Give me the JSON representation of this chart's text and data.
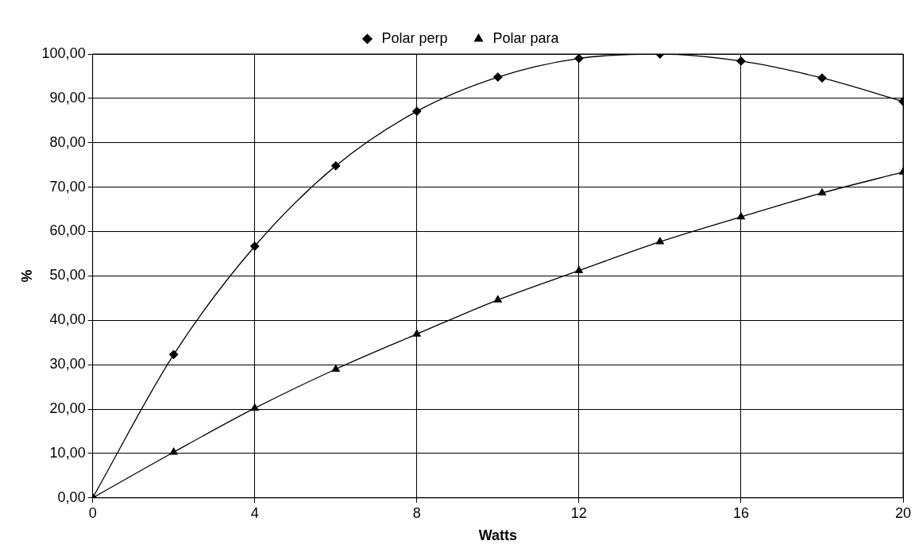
{
  "chart_data": {
    "type": "line",
    "xlabel": "Watts",
    "ylabel": "%",
    "x": [
      0,
      2,
      4,
      6,
      8,
      10,
      12,
      14,
      16,
      18,
      20
    ],
    "series": [
      {
        "name": "Polar perp",
        "color": "#000000",
        "marker": "diamond",
        "values": [
          0,
          32.3,
          56.7,
          74.8,
          87.1,
          94.8,
          99.0,
          100,
          98.4,
          94.6,
          89.3
        ]
      },
      {
        "name": "Polar para",
        "color": "#000000",
        "marker": "triangle",
        "values": [
          0,
          10.3,
          20.2,
          29.0,
          36.9,
          44.6,
          51.2,
          57.7,
          63.3,
          68.7,
          73.4
        ]
      }
    ],
    "xlim": [
      0,
      20
    ],
    "xticks": [
      0,
      4,
      8,
      12,
      16,
      20
    ],
    "ylim": [
      0,
      100
    ],
    "yticks": [
      {
        "value": 0,
        "label": "0,00"
      },
      {
        "value": 10,
        "label": "10,00"
      },
      {
        "value": 20,
        "label": "20,00"
      },
      {
        "value": 30,
        "label": "30,00"
      },
      {
        "value": 40,
        "label": "40,00"
      },
      {
        "value": 50,
        "label": "50,00"
      },
      {
        "value": 60,
        "label": "60,00"
      },
      {
        "value": 70,
        "label": "70,00"
      },
      {
        "value": 80,
        "label": "80,00"
      },
      {
        "value": 90,
        "label": "90,00"
      },
      {
        "value": 100,
        "label": "100,00"
      }
    ],
    "grid": true,
    "legend": "top",
    "line_style": "solid"
  }
}
